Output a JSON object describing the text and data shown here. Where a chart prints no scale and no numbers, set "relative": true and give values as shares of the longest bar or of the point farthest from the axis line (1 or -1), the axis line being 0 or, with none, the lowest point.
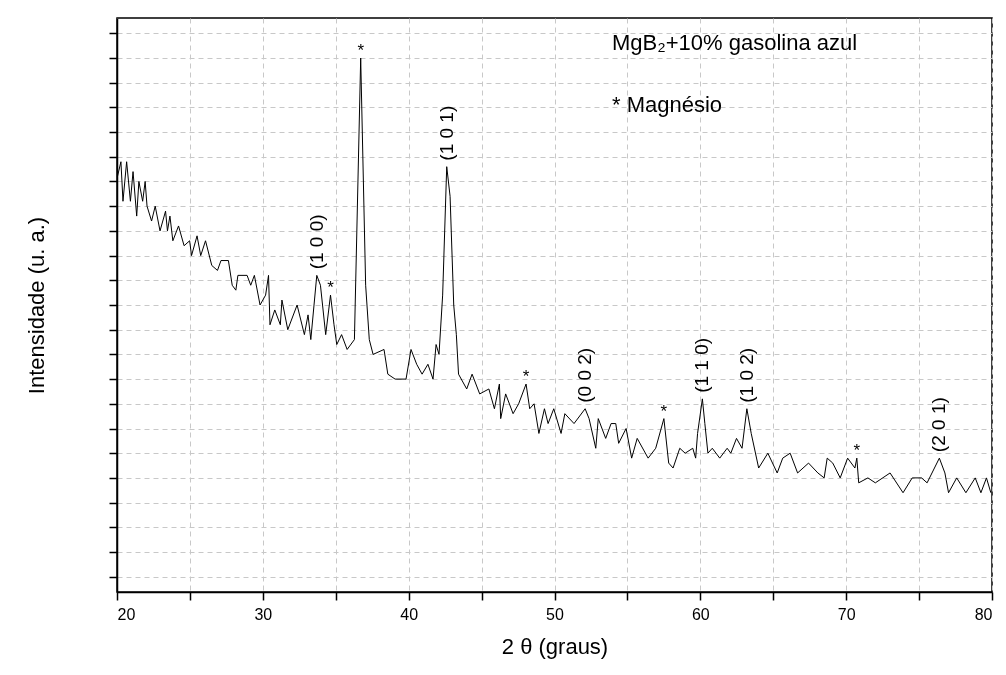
{
  "chart_data": {
    "type": "line",
    "relative": true,
    "xlabel": "2 θ (graus)",
    "ylabel": "Intensidade (u. a.)",
    "xlim": [
      20,
      80
    ],
    "xticks": [
      20,
      {
        "value": 25,
        "label": null
      },
      30,
      {
        "value": 35,
        "label": null
      },
      40,
      {
        "value": 45,
        "label": null
      },
      50,
      {
        "value": 55,
        "label": null
      },
      60,
      {
        "value": 65,
        "label": null
      },
      70,
      {
        "value": 75,
        "label": null
      },
      80
    ],
    "tick_labels": "x",
    "grid": true,
    "marker": "none",
    "line_style": "solid",
    "annotations": [
      "MgB₂+10% gasolina azul",
      "* Magnésio",
      {
        "text": "*",
        "x": 36.71,
        "y": 1.0
      },
      {
        "text": "(1 0 0)",
        "x": 33.7,
        "y": 0.56
      },
      {
        "text": "*",
        "x": 34.64,
        "y": 0.52
      },
      {
        "text": "(1 0 1)",
        "x": 42.61,
        "y": 0.78
      },
      {
        "text": "*",
        "x": 48.05,
        "y": 0.34
      },
      {
        "text": "(0 0 2)",
        "x": 52.1,
        "y": 0.29
      },
      {
        "text": "*",
        "x": 57.5,
        "y": 0.27
      },
      {
        "text": "(1 1 0)",
        "x": 60.14,
        "y": 0.31
      },
      {
        "text": "(1 0 2)",
        "x": 63.19,
        "y": 0.29
      },
      {
        "text": "*",
        "x": 70.73,
        "y": 0.19
      },
      {
        "text": "(2 0 1)",
        "x": 76.39,
        "y": 0.19
      }
    ],
    "series": [
      {
        "color": "#000000",
        "x": [
          20.03,
          20.27,
          20.41,
          20.66,
          20.92,
          21.1,
          21.35,
          21.5,
          21.76,
          21.93,
          22.06,
          22.37,
          22.62,
          22.95,
          23.33,
          23.46,
          23.63,
          23.83,
          24.22,
          24.6,
          24.98,
          25.11,
          25.49,
          25.74,
          26.07,
          26.5,
          26.89,
          27.13,
          27.64,
          27.9,
          28.15,
          28.29,
          28.92,
          29.17,
          29.42,
          29.81,
          30.19,
          30.39,
          30.49,
          30.82,
          31.2,
          31.31,
          31.71,
          32.35,
          32.85,
          33.1,
          33.29,
          33.7,
          33.95,
          34.31,
          34.64,
          34.88,
          35.07,
          35.4,
          35.78,
          36.28,
          36.71,
          37.05,
          37.3,
          37.56,
          38.31,
          38.57,
          39.07,
          39.82,
          40.16,
          40.55,
          40.92,
          41.32,
          41.67,
          41.88,
          42.08,
          42.33,
          42.61,
          42.84,
          43.09,
          43.27,
          43.42,
          43.98,
          44.35,
          44.87,
          45.5,
          45.88,
          46.22,
          46.31,
          46.65,
          47.16,
          47.54,
          48.05,
          48.3,
          48.6,
          48.93,
          49.31,
          49.56,
          49.95,
          50.45,
          50.71,
          51.34,
          52.1,
          52.37,
          52.83,
          53.0,
          53.51,
          53.88,
          54.2,
          54.4,
          54.91,
          55.29,
          55.67,
          56.42,
          56.94,
          57.5,
          57.83,
          58.13,
          58.59,
          58.96,
          59.48,
          59.68,
          59.81,
          60.14,
          60.31,
          60.52,
          60.82,
          61.33,
          61.84,
          62.09,
          62.48,
          62.86,
          63.19,
          63.49,
          64.0,
          64.63,
          65.27,
          65.65,
          66.16,
          66.67,
          67.42,
          68.06,
          68.49,
          68.7,
          69.08,
          69.59,
          70.1,
          70.6,
          70.73,
          70.86,
          71.49,
          72.0,
          73.01,
          73.9,
          74.53,
          75.17,
          75.55,
          76.39,
          76.77,
          77.02,
          77.58,
          78.21,
          78.85,
          79.24,
          79.62,
          79.92
        ],
        "values": [
          0.76,
          0.79,
          0.71,
          0.79,
          0.71,
          0.77,
          0.68,
          0.75,
          0.71,
          0.75,
          0.7,
          0.67,
          0.7,
          0.65,
          0.69,
          0.65,
          0.68,
          0.63,
          0.66,
          0.62,
          0.63,
          0.6,
          0.64,
          0.6,
          0.63,
          0.58,
          0.57,
          0.59,
          0.59,
          0.54,
          0.53,
          0.56,
          0.56,
          0.54,
          0.56,
          0.5,
          0.52,
          0.56,
          0.46,
          0.49,
          0.46,
          0.51,
          0.45,
          0.5,
          0.44,
          0.48,
          0.43,
          0.56,
          0.54,
          0.44,
          0.52,
          0.46,
          0.42,
          0.44,
          0.41,
          0.43,
          1.0,
          0.54,
          0.43,
          0.4,
          0.41,
          0.36,
          0.35,
          0.35,
          0.41,
          0.38,
          0.36,
          0.38,
          0.35,
          0.42,
          0.4,
          0.52,
          0.78,
          0.72,
          0.5,
          0.44,
          0.36,
          0.33,
          0.36,
          0.32,
          0.33,
          0.29,
          0.34,
          0.27,
          0.32,
          0.28,
          0.3,
          0.34,
          0.29,
          0.3,
          0.24,
          0.29,
          0.26,
          0.29,
          0.24,
          0.28,
          0.26,
          0.29,
          0.27,
          0.21,
          0.27,
          0.23,
          0.26,
          0.26,
          0.22,
          0.25,
          0.19,
          0.23,
          0.19,
          0.21,
          0.27,
          0.18,
          0.17,
          0.21,
          0.2,
          0.21,
          0.19,
          0.24,
          0.31,
          0.26,
          0.2,
          0.21,
          0.19,
          0.21,
          0.2,
          0.23,
          0.21,
          0.29,
          0.24,
          0.17,
          0.2,
          0.16,
          0.19,
          0.2,
          0.16,
          0.18,
          0.16,
          0.15,
          0.19,
          0.18,
          0.15,
          0.19,
          0.17,
          0.19,
          0.14,
          0.15,
          0.14,
          0.16,
          0.12,
          0.15,
          0.15,
          0.14,
          0.19,
          0.16,
          0.12,
          0.15,
          0.12,
          0.15,
          0.12,
          0.15,
          0.12
        ]
      }
    ]
  }
}
